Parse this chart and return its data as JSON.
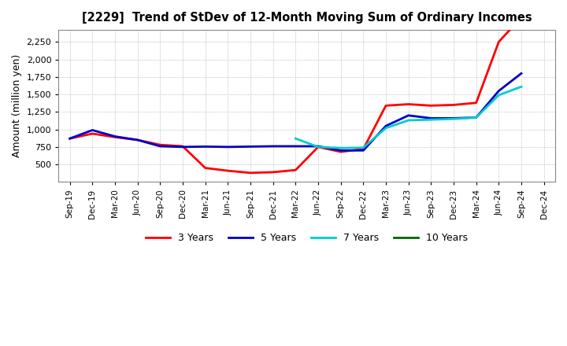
{
  "title": "[2229]  Trend of StDev of 12-Month Moving Sum of Ordinary Incomes",
  "ylabel": "Amount (million yen)",
  "background_color": "#ffffff",
  "grid_color": "#aaaaaa",
  "ylim": [
    250,
    2420
  ],
  "yticks": [
    500,
    750,
    1000,
    1250,
    1500,
    1750,
    2000,
    2250
  ],
  "xtick_labels": [
    "Sep-19",
    "Dec-19",
    "Mar-20",
    "Jun-20",
    "Sep-20",
    "Dec-20",
    "Mar-21",
    "Jun-21",
    "Sep-21",
    "Dec-21",
    "Mar-22",
    "Jun-22",
    "Sep-22",
    "Dec-22",
    "Mar-23",
    "Jun-23",
    "Sep-23",
    "Dec-23",
    "Mar-24",
    "Jun-24",
    "Sep-24",
    "Dec-24"
  ],
  "series": [
    {
      "name": "3 Years",
      "color": "#ff0000",
      "x_indices": [
        0,
        1,
        2,
        3,
        4,
        5,
        6,
        7,
        8,
        9,
        10,
        11,
        12,
        13,
        14,
        15,
        16,
        17,
        18,
        19,
        20
      ],
      "values": [
        870,
        940,
        890,
        850,
        780,
        760,
        450,
        410,
        380,
        390,
        420,
        750,
        680,
        720,
        1340,
        1360,
        1340,
        1350,
        1380,
        2250,
        2600
      ]
    },
    {
      "name": "5 Years",
      "color": "#0000cc",
      "x_indices": [
        0,
        1,
        2,
        3,
        4,
        5,
        6,
        7,
        8,
        9,
        10,
        11,
        12,
        13,
        14,
        15,
        16,
        17,
        18,
        19,
        20
      ],
      "values": [
        870,
        990,
        900,
        850,
        760,
        750,
        755,
        750,
        755,
        760,
        760,
        760,
        700,
        700,
        1050,
        1200,
        1160,
        1160,
        1170,
        1550,
        1800
      ]
    },
    {
      "name": "7 Years",
      "color": "#00cccc",
      "x_indices": [
        10,
        11,
        12,
        13,
        14,
        15,
        16,
        17,
        18,
        19,
        20
      ],
      "values": [
        870,
        750,
        735,
        740,
        1020,
        1130,
        1140,
        1150,
        1170,
        1490,
        1610
      ]
    },
    {
      "name": "10 Years",
      "color": "#006600",
      "x_indices": [],
      "values": []
    }
  ],
  "legend_labels": [
    "3 Years",
    "5 Years",
    "7 Years",
    "10 Years"
  ],
  "legend_colors": [
    "#ff0000",
    "#0000cc",
    "#00cccc",
    "#006600"
  ]
}
